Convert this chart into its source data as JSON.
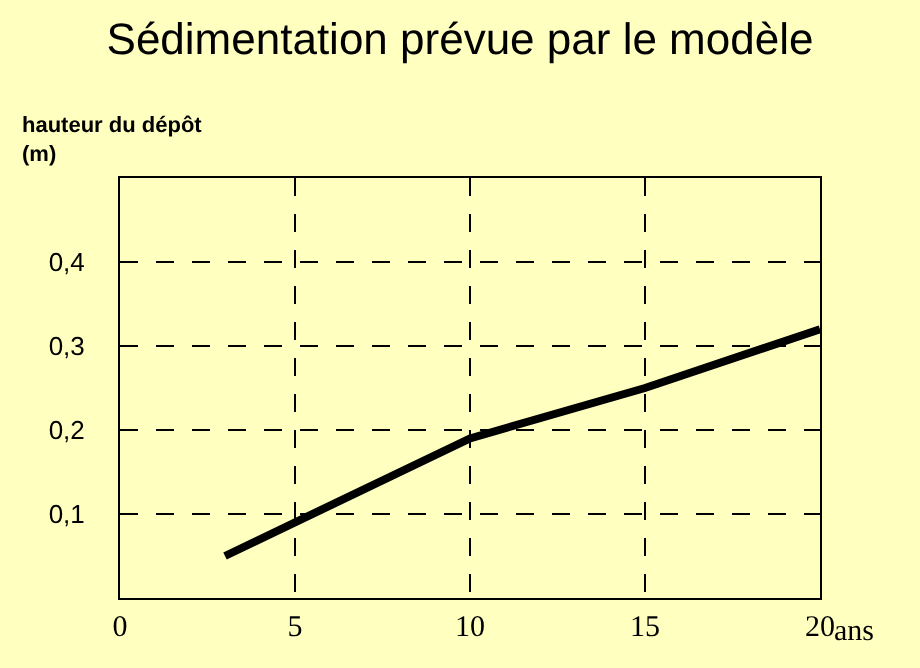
{
  "chart_data": {
    "type": "line",
    "title": "Sédimentation prévue par le modèle",
    "xlabel": "ans",
    "ylabel": "hauteur du dépôt\n(m)",
    "x": [
      3,
      10,
      15,
      20
    ],
    "series": [
      {
        "color": "#000000",
        "values": [
          0.05,
          0.19,
          0.25,
          0.32
        ]
      }
    ],
    "xlim": [
      0,
      20
    ],
    "xticks": [
      0,
      5,
      10,
      15,
      20
    ],
    "ylim": [
      0,
      0.5
    ],
    "yticks": [
      {
        "value": 0.1,
        "label": "0,1"
      },
      {
        "value": 0.2,
        "label": "0,2"
      },
      {
        "value": 0.3,
        "label": "0,3"
      },
      {
        "value": 0.4,
        "label": "0,4"
      }
    ],
    "grid": true,
    "marker": "none",
    "line_style": "solid",
    "legend": false
  }
}
